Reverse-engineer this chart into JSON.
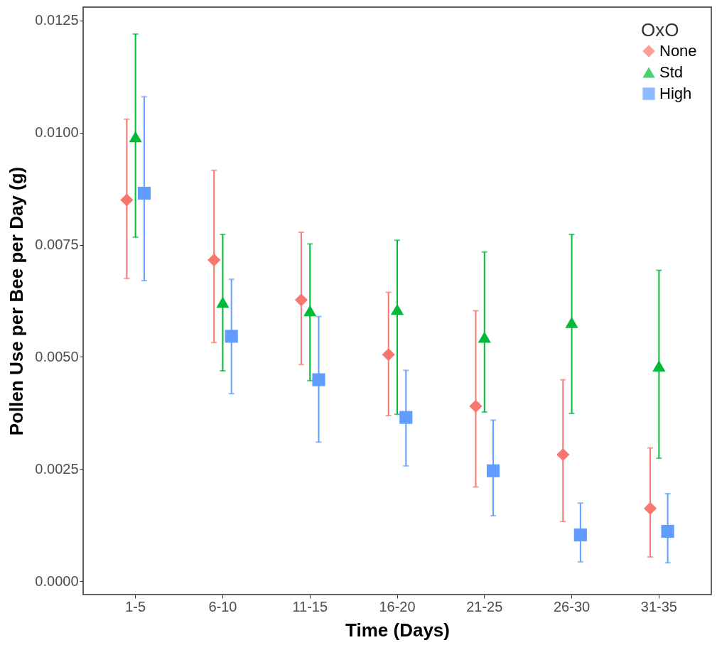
{
  "chart_data": {
    "type": "scatter",
    "xlabel": "Time (Days)",
    "ylabel": "Pollen Use per Bee per Day (g)",
    "legend_title": "OxO",
    "legend": "top right",
    "grid": false,
    "categories": [
      "1-5",
      "6-10",
      "11-15",
      "16-20",
      "21-25",
      "26-30",
      "31-35"
    ],
    "ylim": [
      -0.0003,
      0.0128
    ],
    "yticks": [
      {
        "value": 0,
        "label": "0.0000"
      },
      {
        "value": 0.0025,
        "label": "0.0025"
      },
      {
        "value": 0.005,
        "label": "0.0050"
      },
      {
        "value": 0.0075,
        "label": "0.0075"
      },
      {
        "value": 0.01,
        "label": "0.0100"
      },
      {
        "value": 0.0125,
        "label": "0.0125"
      }
    ],
    "series": [
      {
        "name": "None",
        "color": "#f8766d",
        "marker": "diamond",
        "values": [
          0.0085,
          0.00716,
          0.00627,
          0.00505,
          0.0039,
          0.00282,
          0.00162
        ],
        "errors": [
          [
            0.00675,
            0.0103
          ],
          [
            0.00532,
            0.00916
          ],
          [
            0.00483,
            0.00778
          ],
          [
            0.00369,
            0.00644
          ],
          [
            0.0021,
            0.00603
          ],
          [
            0.00133,
            0.00449
          ],
          [
            0.00054,
            0.00297
          ]
        ]
      },
      {
        "name": "Std",
        "color": "#00ba38",
        "marker": "triangle",
        "values": [
          0.00991,
          0.00622,
          0.00603,
          0.00606,
          0.00544,
          0.00577,
          0.0048
        ],
        "errors": [
          [
            0.00767,
            0.0122
          ],
          [
            0.00469,
            0.00773
          ],
          [
            0.00447,
            0.00752
          ],
          [
            0.00372,
            0.0076
          ],
          [
            0.00377,
            0.00734
          ],
          [
            0.00374,
            0.00773
          ],
          [
            0.00274,
            0.00693
          ]
        ]
      },
      {
        "name": "High",
        "color": "#619cff",
        "marker": "square",
        "values": [
          0.00865,
          0.00546,
          0.00449,
          0.00365,
          0.00246,
          0.00103,
          0.00111
        ],
        "errors": [
          [
            0.0067,
            0.0108
          ],
          [
            0.00418,
            0.00673
          ],
          [
            0.0031,
            0.0059
          ],
          [
            0.00257,
            0.0047
          ],
          [
            0.00146,
            0.00359
          ],
          [
            0.00043,
            0.00174
          ],
          [
            0.00041,
            0.00195
          ]
        ]
      }
    ]
  }
}
